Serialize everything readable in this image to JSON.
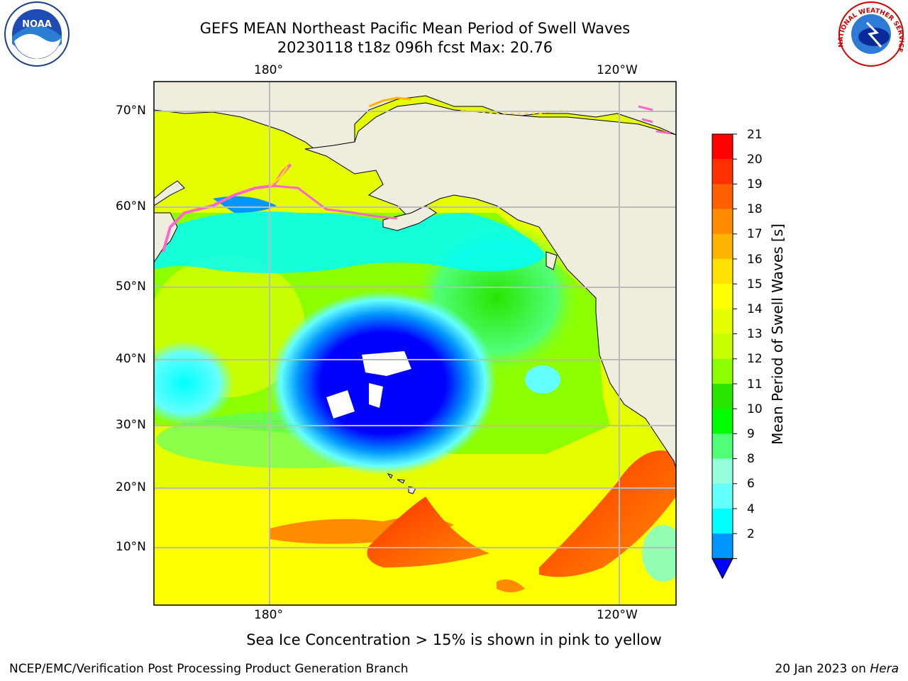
{
  "title": {
    "line1": "GEFS MEAN Northeast Pacific Mean Period of Swell Waves",
    "line2": "20230118 t18z 096h fcst   Max: 20.76"
  },
  "axes": {
    "top_ticks": [
      "180°",
      "120°W"
    ],
    "bottom_ticks": [
      "180°",
      "120°W"
    ],
    "lat_ticks": [
      "70°N",
      "60°N",
      "50°N",
      "40°N",
      "30°N",
      "20°N",
      "10°N"
    ]
  },
  "colorbar": {
    "label": "Mean Period of Swell Waves [s]",
    "ticks": [
      "21",
      "20",
      "19",
      "18",
      "17",
      "16",
      "15",
      "14",
      "13",
      "12",
      "11",
      "10",
      "9",
      "8",
      "6",
      "4",
      "2"
    ],
    "colors": [
      "#ff0000",
      "#ff3000",
      "#ff6000",
      "#ff8c00",
      "#ffb400",
      "#ffe000",
      "#ffff00",
      "#e6ff00",
      "#c8ff00",
      "#8cff00",
      "#28e600",
      "#00ff00",
      "#50ff78",
      "#96ffdc",
      "#64ffff",
      "#00ffff",
      "#0096ff",
      "#0000ff"
    ]
  },
  "footnote": "Sea Ice Concentration > 15% is shown in pink to yellow",
  "credit": "NCEP/EMC/Verification Post Processing Product Generation Branch",
  "date": {
    "text": "20 Jan 2023 on ",
    "host": "Hera"
  },
  "colors": {
    "land": "#efedde",
    "ice": "#ff66cc",
    "grid": "#bbbbbb"
  }
}
